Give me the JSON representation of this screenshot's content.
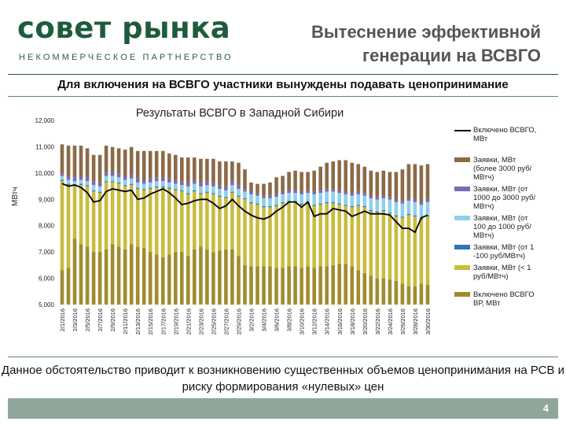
{
  "header": {
    "logo_main": "совет рынка",
    "logo_sub": "НЕКОММЕРЧЕСКОЕ ПАРТНЕРСТВО",
    "slide_title": "Вытеснение эффективной генерации на ВСВГО"
  },
  "subtitle": "Для включения на ВСВГО участники вынуждены подавать ценопринимание",
  "caption": "Данное обстоятельство приводит к возникновению существенных объемов ценопринимания  на РСВ и риску формирования «нулевых» цен",
  "page_number": "4",
  "colors": {
    "brand": "#1d5b3c",
    "band_top": "#8b6a47",
    "band_3000": "#7b6bb0",
    "band_1000": "#8ed0ec",
    "band_100": "#2f73c0",
    "band_1": "#c9bc3f",
    "band_base": "#a08c2e",
    "line": "#000000"
  },
  "chart_data": {
    "type": "bar",
    "title": "Результаты ВСВГО в Западной Сибири",
    "ylabel": "МВтч",
    "xlabel": "",
    "ylim": [
      5000,
      12000
    ],
    "yticks": [
      "5,000",
      "6,000",
      "7,000",
      "8,000",
      "9,000",
      "10,000",
      "11,000",
      "12,000"
    ],
    "ytick_values": [
      5000,
      6000,
      7000,
      8000,
      9000,
      10000,
      11000,
      12000
    ],
    "categories": [
      "2/1/2016",
      "2/2/2016",
      "2/3/2016",
      "2/4/2016",
      "2/5/2016",
      "2/6/2016",
      "2/7/2016",
      "2/8/2016",
      "2/9/2016",
      "2/10/2016",
      "2/11/2016",
      "2/12/2016",
      "2/13/2016",
      "2/14/2016",
      "2/15/2016",
      "2/16/2016",
      "2/17/2016",
      "2/18/2016",
      "2/19/2016",
      "2/20/2016",
      "2/21/2016",
      "2/22/2016",
      "2/23/2016",
      "2/24/2016",
      "2/25/2016",
      "2/26/2016",
      "2/27/2016",
      "2/28/2016",
      "2/29/2016",
      "3/1/2016",
      "3/2/2016",
      "3/3/2016",
      "3/4/2016",
      "3/5/2016",
      "3/6/2016",
      "3/7/2016",
      "3/8/2016",
      "3/9/2016",
      "3/10/2016",
      "3/11/2016",
      "3/12/2016",
      "3/13/2016",
      "3/14/2016",
      "3/15/2016",
      "3/16/2016",
      "3/17/2016",
      "3/18/2016",
      "3/19/2016",
      "3/20/2016",
      "3/21/2016",
      "3/22/2016",
      "3/23/2016",
      "3/24/2016",
      "3/25/2016",
      "3/26/2016",
      "3/27/2016",
      "3/28/2016",
      "3/29/2016",
      "3/30/2016"
    ],
    "xtick_labels": [
      "2/1/2016",
      "2/3/2016",
      "2/5/2016",
      "2/7/2016",
      "2/9/2016",
      "2/11/2016",
      "2/13/2016",
      "2/15/2016",
      "2/17/2016",
      "2/19/2016",
      "2/21/2016",
      "2/23/2016",
      "2/25/2016",
      "2/27/2016",
      "2/29/2016",
      "3/2/2016",
      "3/4/2016",
      "3/6/2016",
      "3/8/2016",
      "3/10/2016",
      "3/12/2016",
      "3/14/2016",
      "3/16/2016",
      "3/18/2016",
      "3/20/2016",
      "3/22/2016",
      "3/24/2016",
      "3/26/2016",
      "3/28/2016",
      "3/30/2016"
    ],
    "legend": [
      {
        "name": "Включено ВСВГО, МВт",
        "kind": "line",
        "color_key": "line"
      },
      {
        "name": "Заявки, МВт (более 3000 руб/МВтч)",
        "kind": "bar",
        "color_key": "band_top"
      },
      {
        "name": "Заявки, МВт (от 1000 до 3000 руб/МВтч)",
        "kind": "bar",
        "color_key": "band_3000"
      },
      {
        "name": "Заявки, МВт (от 100 до 1000 руб/МВтч)",
        "kind": "bar",
        "color_key": "band_1000"
      },
      {
        "name": "Заявки, МВт (от 1 -100 руб/МВтч)",
        "kind": "bar",
        "color_key": "band_100"
      },
      {
        "name": "Заявки, МВт (< 1 руб/МВтч)",
        "kind": "bar",
        "color_key": "band_1"
      },
      {
        "name": "Включено ВСВГО ВР, МВт",
        "kind": "bar",
        "color_key": "band_base"
      }
    ],
    "series": [
      {
        "name": "Заявки, МВт (< 1 руб/МВтч)",
        "values": [
          9700,
          9550,
          9500,
          9550,
          9500,
          9300,
          9250,
          9650,
          9650,
          9600,
          9500,
          9550,
          9400,
          9350,
          9400,
          9450,
          9450,
          9400,
          9350,
          9300,
          9200,
          9300,
          9200,
          9250,
          9200,
          9100,
          9050,
          9250,
          9100,
          9000,
          8850,
          8800,
          8700,
          8700,
          8750,
          8850,
          8900,
          8900,
          8800,
          8850,
          8750,
          8800,
          8850,
          8850,
          8800,
          8750,
          8700,
          8750,
          8700,
          8550,
          8500,
          8550,
          8450,
          8350,
          8300,
          8400,
          8350,
          8250,
          8350
        ]
      },
      {
        "name": "Заявки, МВт (от 1 -100 руб/МВтч)",
        "values": [
          40,
          40,
          40,
          40,
          40,
          40,
          40,
          40,
          40,
          40,
          40,
          40,
          40,
          40,
          40,
          40,
          40,
          40,
          40,
          40,
          40,
          40,
          40,
          40,
          40,
          40,
          40,
          40,
          40,
          40,
          40,
          40,
          40,
          40,
          40,
          40,
          40,
          40,
          40,
          40,
          40,
          40,
          40,
          40,
          40,
          40,
          40,
          40,
          40,
          40,
          40,
          40,
          40,
          40,
          40,
          40,
          40,
          40,
          40
        ]
      },
      {
        "name": "Заявки, МВт (от 100 до 1000 руб/МВтч)",
        "values": [
          150,
          150,
          150,
          150,
          150,
          200,
          200,
          200,
          200,
          200,
          200,
          200,
          200,
          200,
          200,
          200,
          200,
          200,
          200,
          200,
          250,
          250,
          250,
          250,
          250,
          250,
          250,
          250,
          250,
          250,
          300,
          300,
          300,
          300,
          300,
          300,
          300,
          300,
          350,
          350,
          400,
          400,
          400,
          400,
          400,
          400,
          400,
          400,
          400,
          450,
          450,
          450,
          500,
          500,
          500,
          500,
          500,
          500,
          500
        ]
      },
      {
        "name": "Заявки, МВт (от 1000 до 3000 руб/МВтч)",
        "values": [
          100,
          150,
          150,
          150,
          150,
          150,
          150,
          150,
          150,
          150,
          150,
          150,
          150,
          150,
          150,
          150,
          150,
          150,
          150,
          150,
          150,
          150,
          150,
          150,
          150,
          150,
          150,
          150,
          150,
          100,
          100,
          100,
          100,
          100,
          100,
          100,
          100,
          100,
          100,
          100,
          100,
          100,
          100,
          100,
          100,
          100,
          100,
          100,
          100,
          100,
          100,
          100,
          100,
          100,
          100,
          100,
          100,
          100,
          100
        ]
      },
      {
        "name": "Заявки, МВт (более 3000 руб/МВтч)",
        "values": [
          1100,
          1150,
          1200,
          1150,
          1100,
          1000,
          1050,
          1000,
          950,
          950,
          1000,
          1050,
          1050,
          1100,
          1050,
          1000,
          1000,
          950,
          950,
          900,
          950,
          850,
          900,
          850,
          900,
          900,
          950,
          750,
          850,
          750,
          350,
          350,
          450,
          500,
          650,
          600,
          700,
          750,
          750,
          700,
          800,
          900,
          1000,
          1050,
          1150,
          1200,
          1150,
          1050,
          1000,
          950,
          950,
          950,
          950,
          1050,
          1200,
          1300,
          1350,
          1400,
          1350
        ]
      },
      {
        "name": "Включено ВСВГО ВР, МВт",
        "values": [
          6300,
          6400,
          7500,
          7300,
          7200,
          7000,
          7000,
          7100,
          7300,
          7200,
          7100,
          7300,
          7200,
          7150,
          7000,
          6900,
          6800,
          6900,
          7000,
          7000,
          6850,
          7100,
          7200,
          7100,
          7000,
          7050,
          7100,
          7100,
          6850,
          6500,
          6450,
          6450,
          6450,
          6450,
          6400,
          6400,
          6450,
          6450,
          6400,
          6450,
          6400,
          6450,
          6450,
          6500,
          6550,
          6550,
          6450,
          6300,
          6200,
          6100,
          6000,
          6000,
          5950,
          5900,
          5800,
          5700,
          5700,
          5800,
          5750
        ]
      },
      {
        "name": "Включено ВСВГО, МВт",
        "values": [
          9600,
          9500,
          9550,
          9450,
          9250,
          8900,
          8950,
          9300,
          9400,
          9350,
          9300,
          9350,
          9000,
          9050,
          9200,
          9300,
          9400,
          9250,
          9050,
          8800,
          8850,
          8950,
          9000,
          9000,
          8850,
          8650,
          8750,
          9000,
          8750,
          8550,
          8400,
          8300,
          8250,
          8350,
          8550,
          8700,
          8900,
          8900,
          8700,
          8900,
          8350,
          8450,
          8450,
          8650,
          8600,
          8550,
          8350,
          8450,
          8550,
          8450,
          8450,
          8450,
          8400,
          8150,
          7900,
          7900,
          7750,
          8300,
          8400
        ]
      }
    ]
  }
}
